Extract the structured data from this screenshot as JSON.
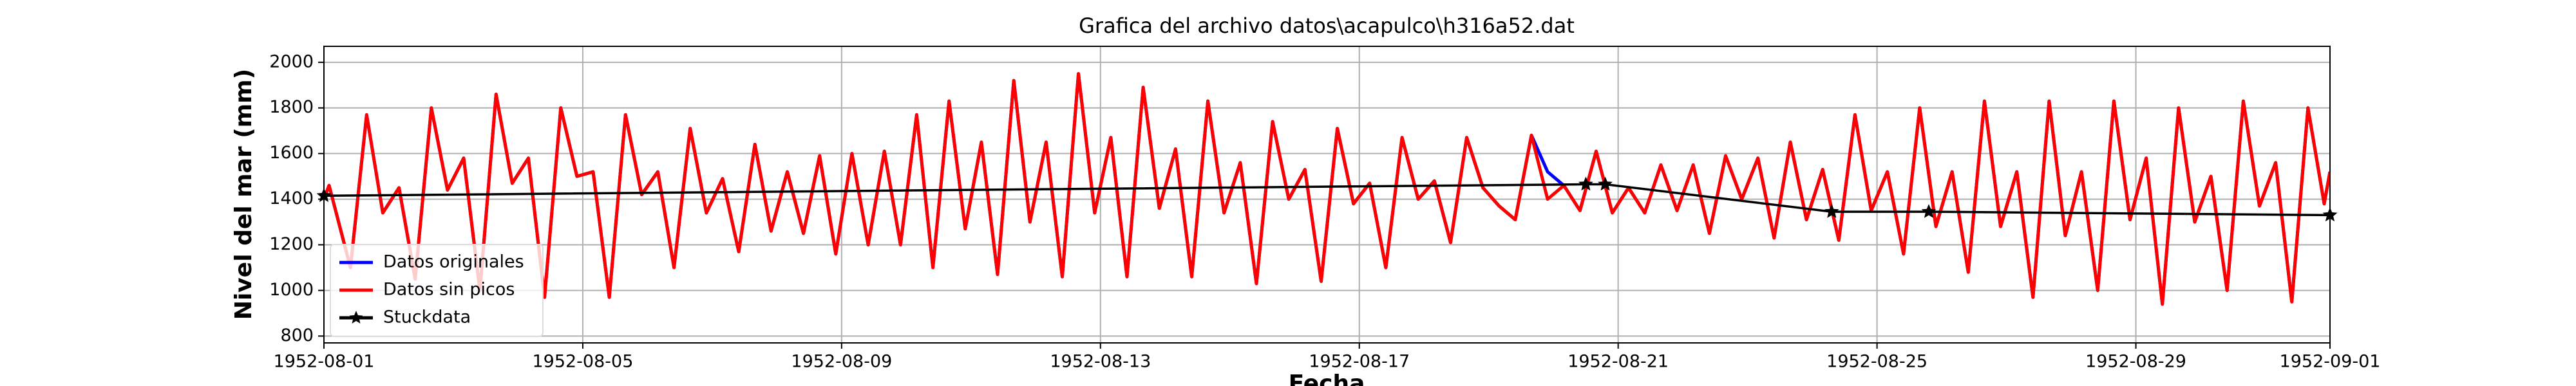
{
  "chart_data": {
    "type": "line",
    "title": "Grafica del archivo datos\\acapulco\\h316a52.dat",
    "x_label": "Fecha",
    "y_label": "Nivel del mar (mm)",
    "xlim": [
      0,
      31
    ],
    "xticks": [
      {
        "value": 0,
        "label": "1952-08-01"
      },
      {
        "value": 4,
        "label": "1952-08-05"
      },
      {
        "value": 8,
        "label": "1952-08-09"
      },
      {
        "value": 12,
        "label": "1952-08-13"
      },
      {
        "value": 16,
        "label": "1952-08-17"
      },
      {
        "value": 20,
        "label": "1952-08-21"
      },
      {
        "value": 24,
        "label": "1952-08-25"
      },
      {
        "value": 28,
        "label": "1952-08-29"
      },
      {
        "value": 31,
        "label": "1952-09-01"
      }
    ],
    "ylim": [
      770,
      2070
    ],
    "yticks": [
      800,
      1000,
      1200,
      1400,
      1600,
      1800,
      2000
    ],
    "grid": true,
    "legend": "lower left",
    "x": [
      0,
      0.08,
      0.41,
      0.66,
      0.91,
      1.16,
      1.41,
      1.66,
      1.91,
      2.16,
      2.41,
      2.66,
      2.91,
      3.16,
      3.41,
      3.66,
      3.91,
      4.16,
      4.41,
      4.66,
      4.91,
      5.16,
      5.41,
      5.66,
      5.91,
      6.16,
      6.41,
      6.66,
      6.91,
      7.16,
      7.41,
      7.66,
      7.91,
      8.16,
      8.41,
      8.66,
      8.91,
      9.16,
      9.41,
      9.66,
      9.91,
      10.16,
      10.41,
      10.66,
      10.91,
      11.16,
      11.41,
      11.66,
      11.91,
      12.16,
      12.41,
      12.66,
      12.91,
      13.16,
      13.41,
      13.66,
      13.91,
      14.16,
      14.41,
      14.66,
      14.91,
      15.16,
      15.41,
      15.66,
      15.91,
      16.16,
      16.41,
      16.66,
      16.91,
      17.16,
      17.41,
      17.66,
      17.91,
      18.16,
      18.41,
      18.66,
      18.91,
      19.16,
      19.41,
      19.66,
      19.91,
      20.16,
      20.41,
      20.66,
      20.91,
      21.16,
      21.41,
      21.66,
      21.91,
      22.16,
      22.41,
      22.66,
      22.91,
      23.16,
      23.41,
      23.66,
      23.91,
      24.16,
      24.41,
      24.66,
      24.91,
      25.16,
      25.41,
      25.66,
      25.91,
      26.16,
      26.41,
      26.66,
      26.91,
      27.16,
      27.41,
      27.66,
      27.91,
      28.16,
      28.41,
      28.66,
      28.91,
      29.16,
      29.41,
      29.66,
      29.91,
      30.16,
      30.41,
      30.66,
      30.91,
      31
    ],
    "series": [
      {
        "name": "Datos originales",
        "color": "#0000ff",
        "values": [
          1400,
          1460,
          1100,
          1770,
          1340,
          1450,
          1050,
          1800,
          1440,
          1580,
          1000,
          1860,
          1470,
          1580,
          970,
          1800,
          1500,
          1520,
          970,
          1770,
          1420,
          1520,
          1100,
          1710,
          1340,
          1490,
          1170,
          1640,
          1260,
          1520,
          1250,
          1590,
          1160,
          1600,
          1200,
          1610,
          1200,
          1770,
          1100,
          1830,
          1270,
          1650,
          1070,
          1920,
          1300,
          1650,
          1060,
          1950,
          1340,
          1670,
          1060,
          1890,
          1360,
          1620,
          1060,
          1830,
          1340,
          1560,
          1030,
          1740,
          1400,
          1530,
          1040,
          1710,
          1380,
          1470,
          1100,
          1670,
          1400,
          1480,
          1210,
          1670,
          1450,
          1370,
          1310,
          1680,
          1520,
          1460,
          1350,
          1610,
          1340,
          1450,
          1340,
          1550,
          1350,
          1550,
          1250,
          1590,
          1400,
          1580,
          1230,
          1650,
          1310,
          1530,
          1220,
          1770,
          1350,
          1520,
          1160,
          1800,
          1280,
          1520,
          1080,
          1830,
          1280,
          1520,
          970,
          1830,
          1240,
          1520,
          1000,
          1830,
          1310,
          1580,
          940,
          1800,
          1300,
          1500,
          1000,
          1830,
          1370,
          1560,
          950,
          1800,
          1380,
          1520
        ]
      },
      {
        "name": "Datos sin picos",
        "color": "#ff0000",
        "values": [
          1400,
          1460,
          1100,
          1770,
          1340,
          1450,
          1050,
          1800,
          1440,
          1580,
          1000,
          1860,
          1470,
          1580,
          970,
          1800,
          1500,
          1520,
          970,
          1770,
          1420,
          1520,
          1100,
          1710,
          1340,
          1490,
          1170,
          1640,
          1260,
          1520,
          1250,
          1590,
          1160,
          1600,
          1200,
          1610,
          1200,
          1770,
          1100,
          1830,
          1270,
          1650,
          1070,
          1920,
          1300,
          1650,
          1060,
          1950,
          1340,
          1670,
          1060,
          1890,
          1360,
          1620,
          1060,
          1830,
          1340,
          1560,
          1030,
          1740,
          1400,
          1530,
          1040,
          1710,
          1380,
          1470,
          1100,
          1670,
          1400,
          1480,
          1210,
          1670,
          1450,
          1370,
          1310,
          1680,
          1400,
          1460,
          1350,
          1610,
          1340,
          1450,
          1340,
          1550,
          1350,
          1550,
          1250,
          1590,
          1400,
          1580,
          1230,
          1650,
          1310,
          1530,
          1220,
          1770,
          1350,
          1520,
          1160,
          1800,
          1280,
          1520,
          1080,
          1830,
          1280,
          1520,
          970,
          1830,
          1240,
          1520,
          1000,
          1830,
          1310,
          1580,
          940,
          1800,
          1300,
          1500,
          1000,
          1830,
          1370,
          1560,
          950,
          1800,
          1380,
          1520
        ]
      },
      {
        "name": "Stuckdata",
        "color": "#000000",
        "marker": "star",
        "x": [
          0,
          19.5,
          19.8,
          23.3,
          24.8,
          31
        ],
        "values": [
          1415,
          1465,
          1465,
          1345,
          1345,
          1330
        ]
      }
    ]
  }
}
